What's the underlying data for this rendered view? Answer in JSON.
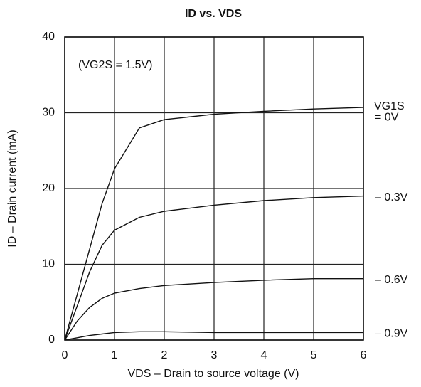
{
  "chart_data": {
    "type": "line",
    "title": "ID vs. VDS",
    "annotation": "(VG2S = 1.5V)",
    "legend_title": "VG1S",
    "xlabel": "VDS – Drain to source voltage   (V)",
    "ylabel": "ID – Drain current   (mA)",
    "x": [
      0,
      0.25,
      0.5,
      0.75,
      1,
      1.5,
      2,
      3,
      4,
      5,
      6
    ],
    "series": [
      {
        "name": "= 0V",
        "color": "#111111",
        "values": [
          0,
          6,
          12,
          18,
          22.6,
          28,
          29.1,
          29.8,
          30.2,
          30.5,
          30.7
        ]
      },
      {
        "name": "– 0.3V",
        "color": "#111111",
        "values": [
          0,
          4.5,
          9,
          12.5,
          14.5,
          16.2,
          17,
          17.8,
          18.4,
          18.8,
          19
        ]
      },
      {
        "name": "– 0.6V",
        "color": "#111111",
        "values": [
          0,
          2.5,
          4.3,
          5.5,
          6.2,
          6.8,
          7.2,
          7.6,
          7.9,
          8.1,
          8.1
        ]
      },
      {
        "name": "– 0.9V",
        "color": "#111111",
        "values": [
          0,
          0.3,
          0.6,
          0.8,
          1,
          1.1,
          1.1,
          1,
          1,
          1,
          1
        ]
      }
    ],
    "xlim": [
      0,
      6
    ],
    "xticks": [
      0,
      1,
      2,
      3,
      4,
      5,
      6
    ],
    "ylim": [
      0,
      40
    ],
    "yticks": [
      0,
      10,
      20,
      30,
      40
    ],
    "grid": true
  }
}
